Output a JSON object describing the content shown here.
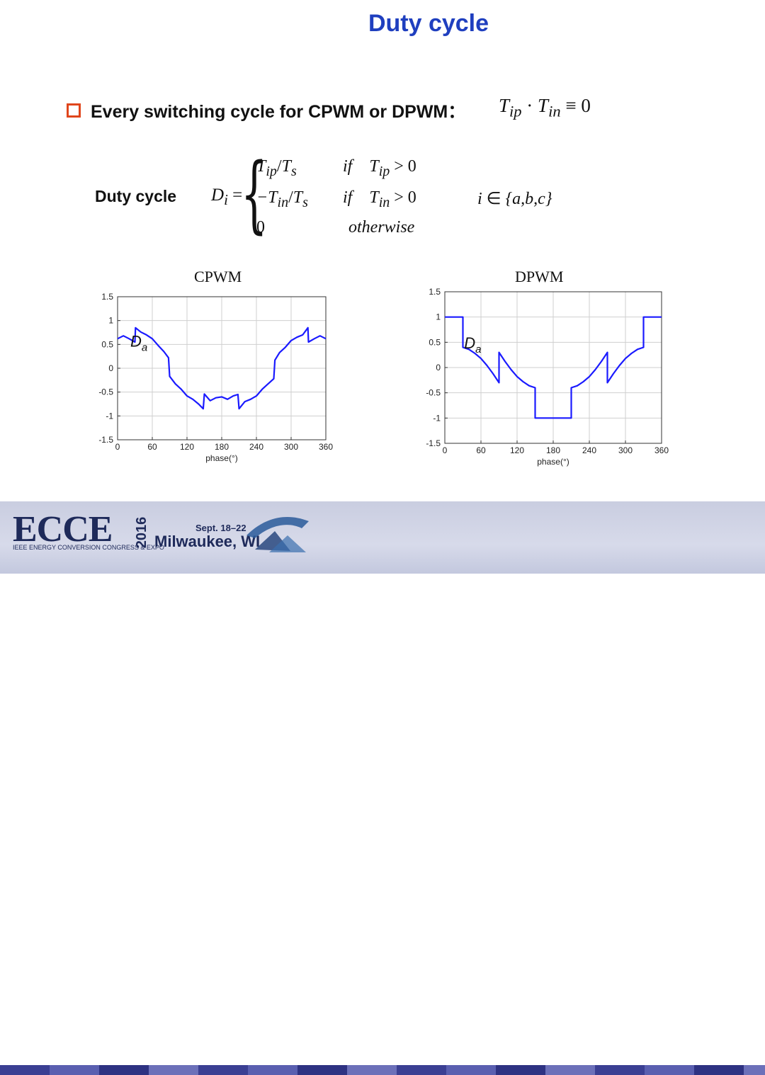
{
  "slide": {
    "title": "Duty cycle",
    "bullet": {
      "icon": "square-bullet-icon",
      "text": "Every switching cycle for CPWM or DPWM：",
      "formula": {
        "T": "T",
        "ip": "ip",
        "dot": "·",
        "in": "in",
        "equiv": "≡ 0"
      }
    },
    "equation": {
      "label": "Duty cycle",
      "lhs": {
        "D": "D",
        "i": "i",
        "eq": "="
      },
      "cases": [
        {
          "expr_a": "T",
          "sub_a": "ip",
          "slash": "/",
          "expr_b": "T",
          "sub_b": "s",
          "cond_if": "if",
          "cond_T": "T",
          "cond_sub": "ip",
          "cond_rel": "> 0"
        },
        {
          "expr_a": "−T",
          "sub_a": "in",
          "slash": "/",
          "expr_b": "T",
          "sub_b": "s",
          "cond_if": "if",
          "cond_T": "T",
          "cond_sub": "in",
          "cond_rel": "> 0"
        },
        {
          "expr_a": "0",
          "cond_otherwise": "otherwise"
        }
      ],
      "domain": {
        "i": "i",
        "in": "∈",
        "set": "{a,b,c}"
      }
    },
    "colors": {
      "title": "#1f3fbf",
      "bullet": "#e0461c",
      "trace": "#1a1aff"
    }
  },
  "chart_data": [
    {
      "type": "line",
      "title": "CPWM",
      "xlabel": "phase(°)",
      "ylabel": "",
      "annotation": {
        "D": "D",
        "sub": "a"
      },
      "xlim": [
        0,
        360
      ],
      "ylim": [
        -1.5,
        1.5
      ],
      "xticks": [
        "0",
        "60",
        "120",
        "180",
        "240",
        "300",
        "360"
      ],
      "yticks": [
        "1.5",
        "1",
        "0.5",
        "0",
        "-0.5",
        "-1",
        "-1.5"
      ],
      "grid": true,
      "series": [
        {
          "x": [
            0,
            10,
            20,
            30,
            31,
            40,
            50,
            60,
            70,
            80,
            88,
            90,
            100,
            110,
            120,
            130,
            140,
            148,
            150,
            160,
            170,
            180,
            190,
            200,
            208,
            210,
            220,
            230,
            240,
            250,
            260,
            270,
            272,
            280,
            290,
            300,
            310,
            320,
            329,
            330,
            340,
            350,
            360
          ],
          "y": [
            0.62,
            0.68,
            0.62,
            0.55,
            0.85,
            0.76,
            0.7,
            0.62,
            0.48,
            0.35,
            0.22,
            -0.17,
            -0.33,
            -0.44,
            -0.58,
            -0.65,
            -0.75,
            -0.85,
            -0.54,
            -0.68,
            -0.62,
            -0.6,
            -0.65,
            -0.58,
            -0.55,
            -0.85,
            -0.7,
            -0.65,
            -0.58,
            -0.44,
            -0.33,
            -0.22,
            0.17,
            0.33,
            0.44,
            0.58,
            0.65,
            0.7,
            0.85,
            0.55,
            0.62,
            0.68,
            0.62
          ]
        }
      ]
    },
    {
      "type": "line",
      "title": "DPWM",
      "xlabel": "phase(°)",
      "ylabel": "",
      "annotation": {
        "D": "D",
        "sub": "a"
      },
      "xlim": [
        0,
        360
      ],
      "ylim": [
        -1.5,
        1.5
      ],
      "xticks": [
        "0",
        "60",
        "120",
        "180",
        "240",
        "300",
        "360"
      ],
      "yticks": [
        "1.5",
        "1",
        "0.5",
        "0",
        "-0.5",
        "-1",
        "-1.5"
      ],
      "grid": true,
      "series": [
        {
          "x": [
            0,
            30,
            30,
            40,
            50,
            60,
            70,
            80,
            90,
            90,
            100,
            110,
            120,
            130,
            140,
            150,
            150,
            180,
            210,
            210,
            220,
            230,
            240,
            250,
            260,
            270,
            270,
            280,
            290,
            300,
            310,
            320,
            330,
            330,
            360
          ],
          "y": [
            1,
            1,
            0.4,
            0.36,
            0.28,
            0.18,
            0.04,
            -0.12,
            -0.3,
            0.3,
            0.12,
            -0.04,
            -0.18,
            -0.28,
            -0.36,
            -0.4,
            -1,
            -1,
            -1,
            -0.4,
            -0.36,
            -0.28,
            -0.18,
            -0.04,
            0.12,
            0.3,
            -0.3,
            -0.12,
            0.04,
            0.18,
            0.28,
            0.36,
            0.4,
            1,
            1
          ]
        }
      ]
    }
  ],
  "footer": {
    "logo": "ECCE",
    "year": "2016",
    "subtitle": "IEEE ENERGY CONVERSION CONGRESS & EXPO",
    "dates": "Sept. 18–22",
    "location": "Milwaukee, WI"
  }
}
